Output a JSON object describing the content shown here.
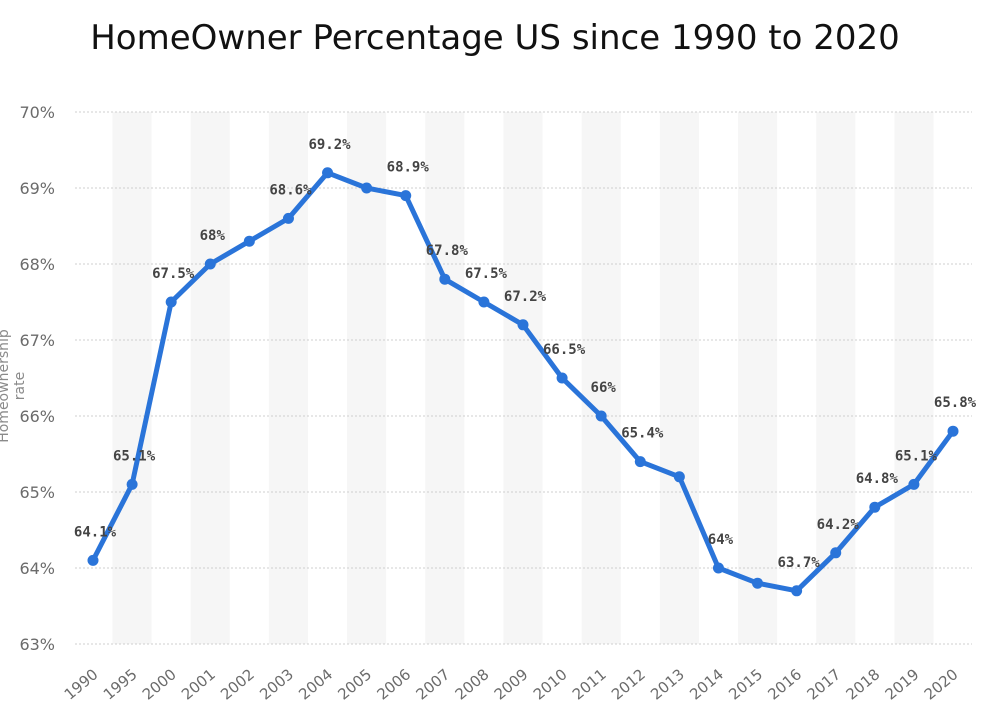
{
  "chart_data": {
    "type": "line",
    "title": "HomeOwner Percentage US since 1990 to 2020",
    "ylabel": "Homeownership rate",
    "categories": [
      "1990",
      "1995",
      "2000",
      "2001",
      "2002",
      "2003",
      "2004",
      "2005",
      "2006",
      "2007",
      "2008",
      "2009",
      "2010",
      "2011",
      "2012",
      "2013",
      "2014",
      "2015",
      "2016",
      "2017",
      "2018",
      "2019",
      "2020"
    ],
    "series": [
      {
        "values": [
          64.1,
          65.1,
          67.5,
          68.0,
          68.3,
          68.6,
          69.2,
          69.0,
          68.9,
          67.8,
          67.5,
          67.2,
          66.5,
          66.0,
          65.4,
          65.2,
          64.0,
          63.8,
          63.7,
          64.2,
          64.8,
          65.1,
          65.8
        ],
        "labels": [
          "64.1%",
          "65.1%",
          "67.5%",
          "68%",
          "",
          "68.6%",
          "69.2%",
          "",
          "68.9%",
          "67.8%",
          "67.5%",
          "67.2%",
          "66.5%",
          "66%",
          "65.4%",
          "",
          "64%",
          "",
          "63.7%",
          "64.2%",
          "64.8%",
          "65.1%",
          "65.8%"
        ]
      }
    ],
    "yticks": [
      "63%",
      "64%",
      "65%",
      "66%",
      "67%",
      "68%",
      "69%",
      "70%"
    ],
    "ytick_values": [
      63,
      64,
      65,
      66,
      67,
      68,
      69,
      70
    ],
    "ylim": [
      63,
      70
    ],
    "grid": true,
    "line_color": "#2a74d9"
  }
}
